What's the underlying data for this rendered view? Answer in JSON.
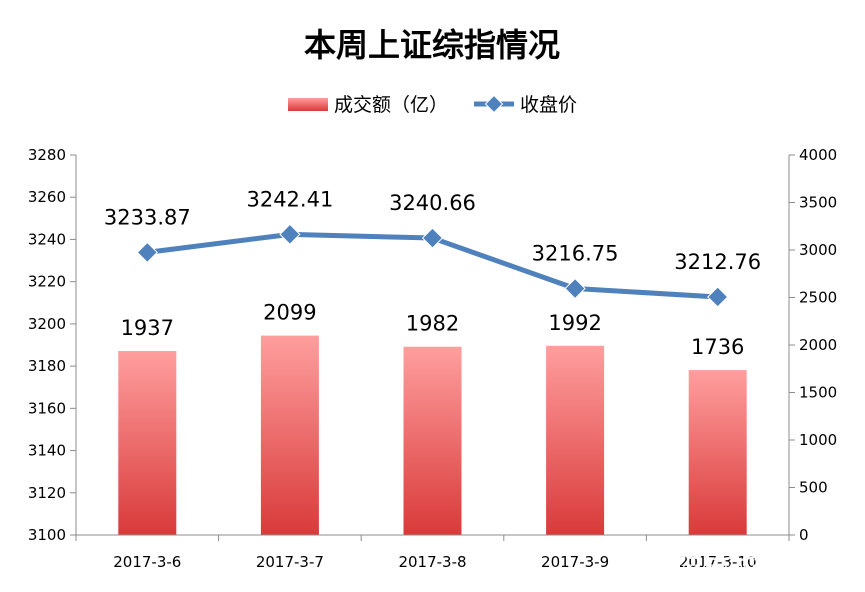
{
  "chart_data": {
    "type": "bar",
    "title": "本周上证综指情况",
    "categories": [
      "2017-3-6",
      "2017-3-7",
      "2017-3-8",
      "2017-3-9",
      "2017-3-10"
    ],
    "series": [
      {
        "name": "成交额（亿）",
        "type": "bar",
        "axis": "right",
        "values": [
          1937,
          2099,
          1982,
          1992,
          1736
        ],
        "labels": [
          "1937",
          "2099",
          "1982",
          "1992",
          "1736"
        ],
        "color_top": "#ff9e9e",
        "color_bottom": "#d93a3a"
      },
      {
        "name": "收盘价",
        "type": "line",
        "axis": "left",
        "values": [
          3233.87,
          3242.41,
          3240.66,
          3216.75,
          3212.76
        ],
        "labels": [
          "3233.87",
          "3242.41",
          "3240.66",
          "3216.75",
          "3212.76"
        ],
        "color": "#4f81bd"
      }
    ],
    "y_left": {
      "range": [
        3100,
        3280
      ],
      "ticks": [
        "3100",
        "3120",
        "3140",
        "3160",
        "3180",
        "3200",
        "3220",
        "3240",
        "3260",
        "3280"
      ]
    },
    "y_right": {
      "range": [
        0,
        4000
      ],
      "ticks": [
        "0",
        "500",
        "1000",
        "1500",
        "2000",
        "2500",
        "3000",
        "3500",
        "4000"
      ]
    },
    "grid": false,
    "legend": "top-center",
    "watermark": {
      "main": "21世纪经济报道",
      "sub": "21ST CENTURY BUSINESS HERALD"
    }
  }
}
